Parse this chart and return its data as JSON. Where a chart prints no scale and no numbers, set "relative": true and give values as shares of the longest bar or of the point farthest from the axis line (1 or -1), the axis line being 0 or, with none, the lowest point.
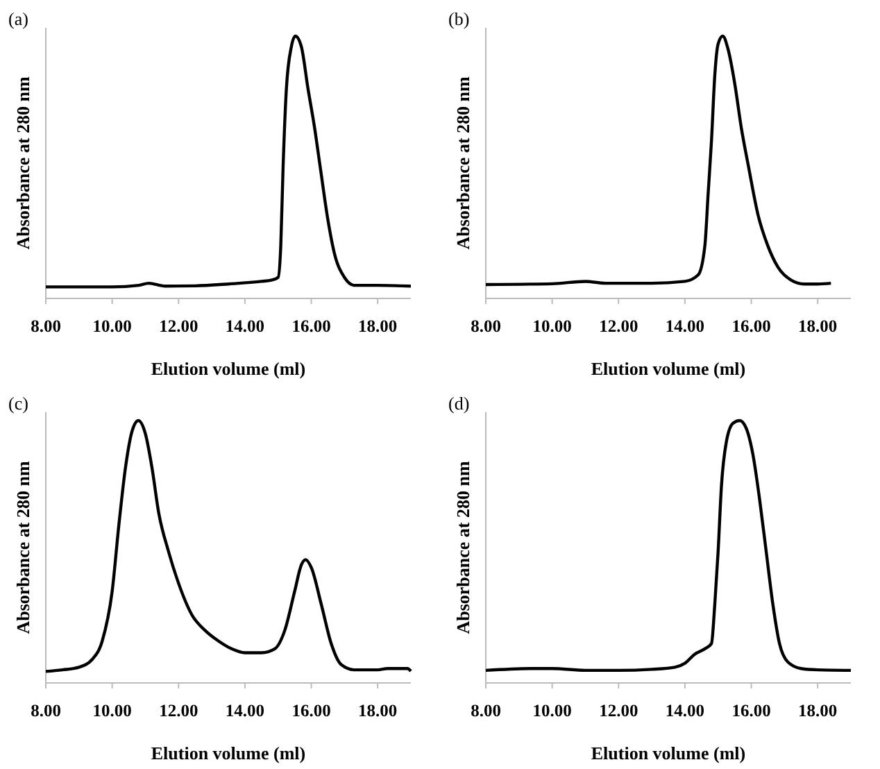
{
  "chart_data": [
    {
      "type": "line",
      "title": "(a)",
      "xlabel": "Elution volume (ml)",
      "ylabel": "Absorbance at 280 nm",
      "relative": true,
      "xlim": [
        8,
        19
      ],
      "xticks": [
        {
          "value": 8,
          "label": "8.00"
        },
        {
          "value": 10,
          "label": "10.00"
        },
        {
          "value": 12,
          "label": "12.00"
        },
        {
          "value": 14,
          "label": "14.00"
        },
        {
          "value": 16,
          "label": "16.00"
        },
        {
          "value": 18,
          "label": "18.00"
        }
      ],
      "grid": false,
      "marker": "none",
      "line_style": "solid",
      "series": [
        {
          "color": "#000000",
          "x": [
            8,
            10,
            10.8,
            11.1,
            11.6,
            12.5,
            13.5,
            14.5,
            14.8,
            15,
            15.08,
            15.15,
            15.25,
            15.4,
            15.52,
            15.7,
            15.9,
            16.1,
            16.27,
            16.5,
            16.7,
            17,
            17.3,
            18,
            19
          ],
          "values": [
            0.044,
            0.044,
            0.05,
            0.058,
            0.047,
            0.048,
            0.055,
            0.065,
            0.07,
            0.08,
            0.2,
            0.5,
            0.8,
            0.96,
            1,
            0.96,
            0.8,
            0.65,
            0.5,
            0.3,
            0.17,
            0.08,
            0.05,
            0.05,
            0.047
          ]
        }
      ]
    },
    {
      "type": "line",
      "title": "(b)",
      "xlabel": "Elution volume (ml)",
      "ylabel": "Absorbance at 280 nm",
      "relative": true,
      "xlim": [
        8,
        19
      ],
      "xticks": [
        {
          "value": 8,
          "label": "8.00"
        },
        {
          "value": 10,
          "label": "10.00"
        },
        {
          "value": 12,
          "label": "12.00"
        },
        {
          "value": 14,
          "label": "14.00"
        },
        {
          "value": 16,
          "label": "16.00"
        },
        {
          "value": 18,
          "label": "18.00"
        }
      ],
      "grid": false,
      "marker": "none",
      "line_style": "solid",
      "series": [
        {
          "color": "#000000",
          "x": [
            8,
            10,
            11,
            11.6,
            13,
            14,
            14.4,
            14.6,
            14.7,
            14.8,
            14.9,
            15,
            15.14,
            15.3,
            15.5,
            15.7,
            15.92,
            16.2,
            16.5,
            16.8,
            17.2,
            17.6,
            18,
            18.4
          ],
          "values": [
            0.053,
            0.056,
            0.065,
            0.058,
            0.058,
            0.065,
            0.09,
            0.2,
            0.4,
            0.6,
            0.85,
            0.97,
            1,
            0.95,
            0.82,
            0.65,
            0.5,
            0.32,
            0.2,
            0.12,
            0.07,
            0.055,
            0.055,
            0.058
          ]
        }
      ]
    },
    {
      "type": "line",
      "title": "(c)",
      "xlabel": "Elution volume (ml)",
      "ylabel": "Absorbance at 280 nm",
      "relative": true,
      "xlim": [
        8,
        19
      ],
      "xticks": [
        {
          "value": 8,
          "label": "8.00"
        },
        {
          "value": 10,
          "label": "10.00"
        },
        {
          "value": 12,
          "label": "12.00"
        },
        {
          "value": 14,
          "label": "14.00"
        },
        {
          "value": 16,
          "label": "16.00"
        },
        {
          "value": 18,
          "label": "18.00"
        }
      ],
      "grid": false,
      "marker": "none",
      "line_style": "solid",
      "series": [
        {
          "color": "#000000",
          "x": [
            8,
            8.5,
            9,
            9.4,
            9.7,
            10,
            10.2,
            10.4,
            10.6,
            10.79,
            11,
            11.2,
            11.4,
            11.7,
            12,
            12.4,
            12.8,
            13.2,
            13.6,
            14,
            14.5,
            14.9,
            15.2,
            15.5,
            15.7,
            15.83,
            16,
            16.3,
            16.6,
            16.9,
            17.3,
            18,
            18.3,
            18.9,
            19
          ],
          "values": [
            0.044,
            0.05,
            0.06,
            0.09,
            0.16,
            0.35,
            0.6,
            0.82,
            0.96,
            1,
            0.95,
            0.82,
            0.65,
            0.5,
            0.38,
            0.26,
            0.2,
            0.16,
            0.13,
            0.115,
            0.115,
            0.13,
            0.2,
            0.35,
            0.45,
            0.47,
            0.44,
            0.3,
            0.15,
            0.07,
            0.05,
            0.05,
            0.055,
            0.055,
            0.045
          ]
        }
      ]
    },
    {
      "type": "line",
      "title": "(d)",
      "xlabel": "Elution volume (ml)",
      "ylabel": "Absorbance at 280 nm",
      "relative": true,
      "xlim": [
        8,
        19
      ],
      "xticks": [
        {
          "value": 8,
          "label": "8.00"
        },
        {
          "value": 10,
          "label": "10.00"
        },
        {
          "value": 12,
          "label": "12.00"
        },
        {
          "value": 14,
          "label": "14.00"
        },
        {
          "value": 16,
          "label": "16.00"
        },
        {
          "value": 18,
          "label": "18.00"
        }
      ],
      "grid": false,
      "marker": "none",
      "line_style": "solid",
      "series": [
        {
          "color": "#000000",
          "x": [
            8,
            9.5,
            10,
            11,
            12,
            13,
            13.7,
            14,
            14.3,
            14.6,
            14.8,
            14.9,
            15,
            15.1,
            15.25,
            15.45,
            15.65,
            15.85,
            16.05,
            16.25,
            16.45,
            16.65,
            16.85,
            17.1,
            17.5,
            18,
            19
          ],
          "values": [
            0.048,
            0.055,
            0.055,
            0.048,
            0.048,
            0.052,
            0.06,
            0.075,
            0.11,
            0.13,
            0.15,
            0.3,
            0.5,
            0.75,
            0.92,
            0.99,
            1,
            0.97,
            0.87,
            0.7,
            0.5,
            0.3,
            0.15,
            0.08,
            0.055,
            0.05,
            0.048
          ]
        }
      ]
    }
  ]
}
